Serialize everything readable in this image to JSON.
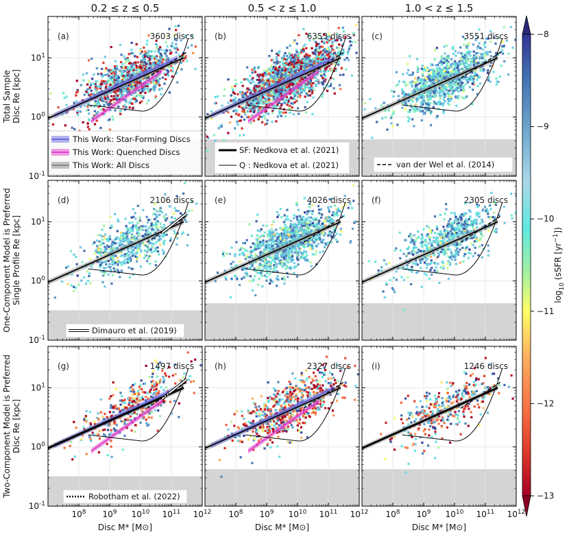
{
  "chart_data": {
    "type": "scatter",
    "column_titles": [
      "0.2 ≤ z ≤ 0.5",
      "0.5 < z ≤ 1.0",
      "1.0 < z ≤ 1.5"
    ],
    "row_ylabels": [
      [
        "Total Sample",
        "Disc Re [kpc]"
      ],
      [
        "One-Component Model is Preferred",
        "Single Profile Re [kpc]"
      ],
      [
        "Two-Component Model is Preferred",
        "Disc Re [kpc]"
      ]
    ],
    "xlabel": "Disc M* [M⊙]",
    "x_scale": "log",
    "y_scale": "log",
    "xlim": [
      10000000.0,
      1000000000000.0
    ],
    "ylim": [
      0.1,
      50
    ],
    "x_ticks": [
      "10^8",
      "10^9",
      "10^10",
      "10^11",
      "10^12"
    ],
    "y_ticks": [
      "10^-1",
      "10^0",
      "10^1"
    ],
    "colorbar": {
      "label": "log10 (sSFR [yr^-1])",
      "range": [
        -13,
        -8
      ],
      "ticks": [
        "-8",
        "-9",
        "-10",
        "-11",
        "-12",
        "-13"
      ],
      "colormap": "RdYlBu"
    },
    "panels": [
      {
        "label": "(a)",
        "count_text": "3603 discs",
        "n": 3603,
        "shade_top": 0.42,
        "pop": "all",
        "lines": [
          "sf",
          "q",
          "all",
          "vdw",
          "ned_sf_q"
        ],
        "legend": "this_work"
      },
      {
        "label": "(b)",
        "count_text": "6353 discs",
        "n": 6353,
        "shade_top": 0.42,
        "pop": "all",
        "lines": [
          "sf",
          "q",
          "all",
          "vdw",
          "ned_sf_q"
        ],
        "legend": "nedkova"
      },
      {
        "label": "(c)",
        "count_text": "3551 discs",
        "n": 3551,
        "shade_top": 0.42,
        "pop": "sf",
        "lines": [
          "all",
          "vdw",
          "ned_sf_q"
        ],
        "legend": "vdw"
      },
      {
        "label": "(d)",
        "count_text": "2106 discs",
        "n": 2106,
        "shade_top": 0.32,
        "pop": "sf",
        "lines": [
          "all",
          "vdw",
          "ned_sf_q",
          "dim"
        ],
        "legend": "dimauro"
      },
      {
        "label": "(e)",
        "count_text": "4026 discs",
        "n": 4026,
        "shade_top": 0.42,
        "pop": "sf",
        "lines": [
          "all",
          "vdw",
          "ned_sf_q"
        ],
        "legend": null
      },
      {
        "label": "(f)",
        "count_text": "2305 discs",
        "n": 2305,
        "shade_top": 0.42,
        "pop": "sf",
        "lines": [
          "all",
          "vdw",
          "ned_sf_q"
        ],
        "legend": null
      },
      {
        "label": "(g)",
        "count_text": "1497 discs",
        "n": 1497,
        "shade_top": 0.32,
        "pop": "mixed",
        "lines": [
          "sf",
          "q",
          "all",
          "vdw",
          "ned_sf_q",
          "robo",
          "dim"
        ],
        "legend": "robotham"
      },
      {
        "label": "(h)",
        "count_text": "2327 discs",
        "n": 2327,
        "shade_top": 0.42,
        "pop": "mixed",
        "lines": [
          "sf",
          "q",
          "all",
          "vdw",
          "ned_sf_q"
        ],
        "legend": null
      },
      {
        "label": "(i)",
        "count_text": "1246 discs",
        "n": 1246,
        "shade_top": 0.42,
        "pop": "mixed",
        "lines": [
          "all",
          "vdw",
          "ned_sf_q"
        ],
        "legend": null
      }
    ],
    "relations": {
      "sf": {
        "name": "This Work: Star-Forming Discs",
        "color": "#6a6ae0",
        "points": [
          [
            7.2,
            1.05
          ],
          [
            11.2,
            10.0
          ]
        ]
      },
      "q": {
        "name": "This Work: Quenched Discs",
        "color": "#e040c8",
        "points": [
          [
            8.4,
            0.85
          ],
          [
            10.7,
            6.0
          ]
        ]
      },
      "all": {
        "name": "This Work: All Discs",
        "color": "#8a8a8a",
        "points": [
          [
            7.0,
            0.95
          ],
          [
            11.4,
            10.0
          ]
        ]
      },
      "ned_sf": {
        "name": "SF: Nedkova et al. (2021)"
      },
      "ned_q": {
        "name": "Q : Nedkova et al. (2021)"
      },
      "vdw": {
        "name": "van der Wel et al. (2014)"
      },
      "dim": {
        "name": "Dimauro et al. (2019)"
      },
      "robo": {
        "name": "Robotham et al. (2022)"
      }
    }
  }
}
